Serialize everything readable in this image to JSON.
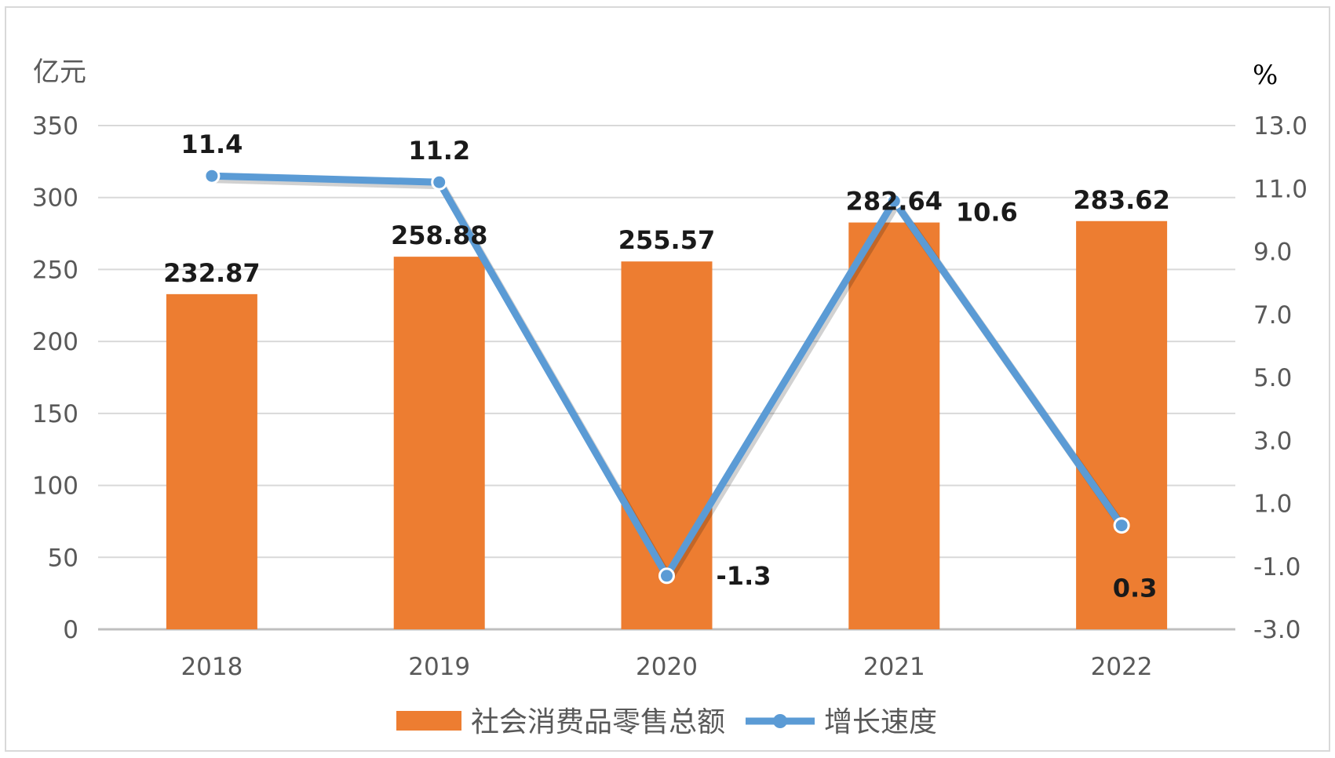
{
  "chart_data": {
    "type": "bar",
    "categories": [
      "2018",
      "2019",
      "2020",
      "2021",
      "2022"
    ],
    "series": [
      {
        "name": "社会消费品零售总额",
        "type": "bar",
        "axis": "left",
        "values": [
          232.87,
          258.88,
          255.57,
          282.64,
          283.62
        ],
        "labels": [
          "232.87",
          "258.88",
          "255.57",
          "282.64",
          "283.62"
        ]
      },
      {
        "name": "增长速度",
        "type": "line",
        "axis": "right",
        "values": [
          11.4,
          11.2,
          -1.3,
          10.6,
          0.3
        ],
        "labels": [
          "11.4",
          "11.2",
          "-1.3",
          "10.6",
          "0.3"
        ]
      }
    ],
    "left_axis": {
      "unit": "亿元",
      "ylim": [
        0,
        350
      ],
      "ticks": [
        "0",
        "50",
        "100",
        "150",
        "200",
        "250",
        "300",
        "350"
      ]
    },
    "right_axis": {
      "unit": "%",
      "ylim": [
        -3.0,
        13.0
      ],
      "ticks": [
        "-3.0",
        "-1.0",
        "1.0",
        "3.0",
        "5.0",
        "7.0",
        "9.0",
        "11.0",
        "13.0"
      ]
    },
    "legend": {
      "placement": "bottom",
      "items": [
        "社会消费品零售总额",
        "增长速度"
      ]
    },
    "grid": true,
    "colors": {
      "bar": "#ed7d31",
      "line": "#5b9bd5",
      "grid": "#d9d9d9"
    }
  }
}
